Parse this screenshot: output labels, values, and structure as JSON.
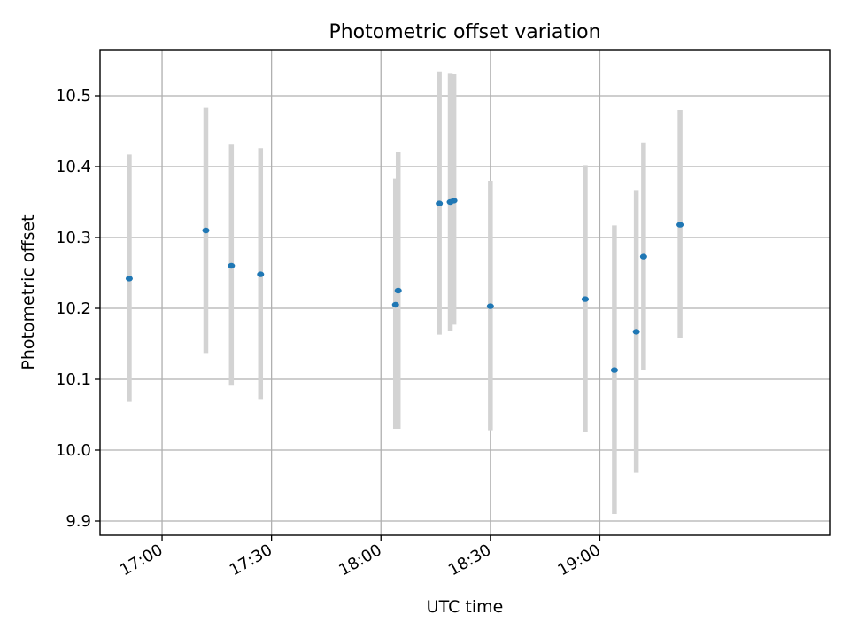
{
  "chart_data": {
    "type": "scatter",
    "title": "Photometric offset variation",
    "xlabel": "UTC time",
    "ylabel": "Photometric offset",
    "xlim": [
      "16:43",
      "20:03"
    ],
    "ylim": [
      9.88,
      10.565
    ],
    "grid": true,
    "x_ticks": [
      "17:00",
      "17:30",
      "18:00",
      "18:30",
      "19:00"
    ],
    "y_ticks": [
      "9.9",
      "10.0",
      "10.1",
      "10.2",
      "10.3",
      "10.4",
      "10.5"
    ],
    "colors": {
      "point": "#1f77b4",
      "errorbar": "#d3d3d3"
    },
    "series": [
      {
        "x": [
          "16:51",
          "17:12",
          "17:19",
          "17:27",
          "18:04",
          "18:04",
          "18:16",
          "18:19",
          "18:20",
          "18:30",
          "18:56",
          "19:04",
          "19:10",
          "19:12",
          "19:22"
        ],
        "y": [
          10.242,
          10.31,
          10.26,
          10.248,
          10.205,
          10.225,
          10.348,
          10.35,
          10.352,
          10.203,
          10.213,
          10.113,
          10.167,
          10.273,
          10.318
        ],
        "err_low": [
          10.068,
          10.137,
          10.091,
          10.072,
          10.03,
          10.03,
          10.163,
          10.168,
          10.177,
          10.028,
          10.025,
          9.91,
          9.968,
          10.113,
          10.158
        ],
        "err_high": [
          10.417,
          10.483,
          10.431,
          10.426,
          10.383,
          10.42,
          10.534,
          10.532,
          10.53,
          10.38,
          10.402,
          10.317,
          10.367,
          10.434,
          10.48
        ]
      }
    ]
  }
}
